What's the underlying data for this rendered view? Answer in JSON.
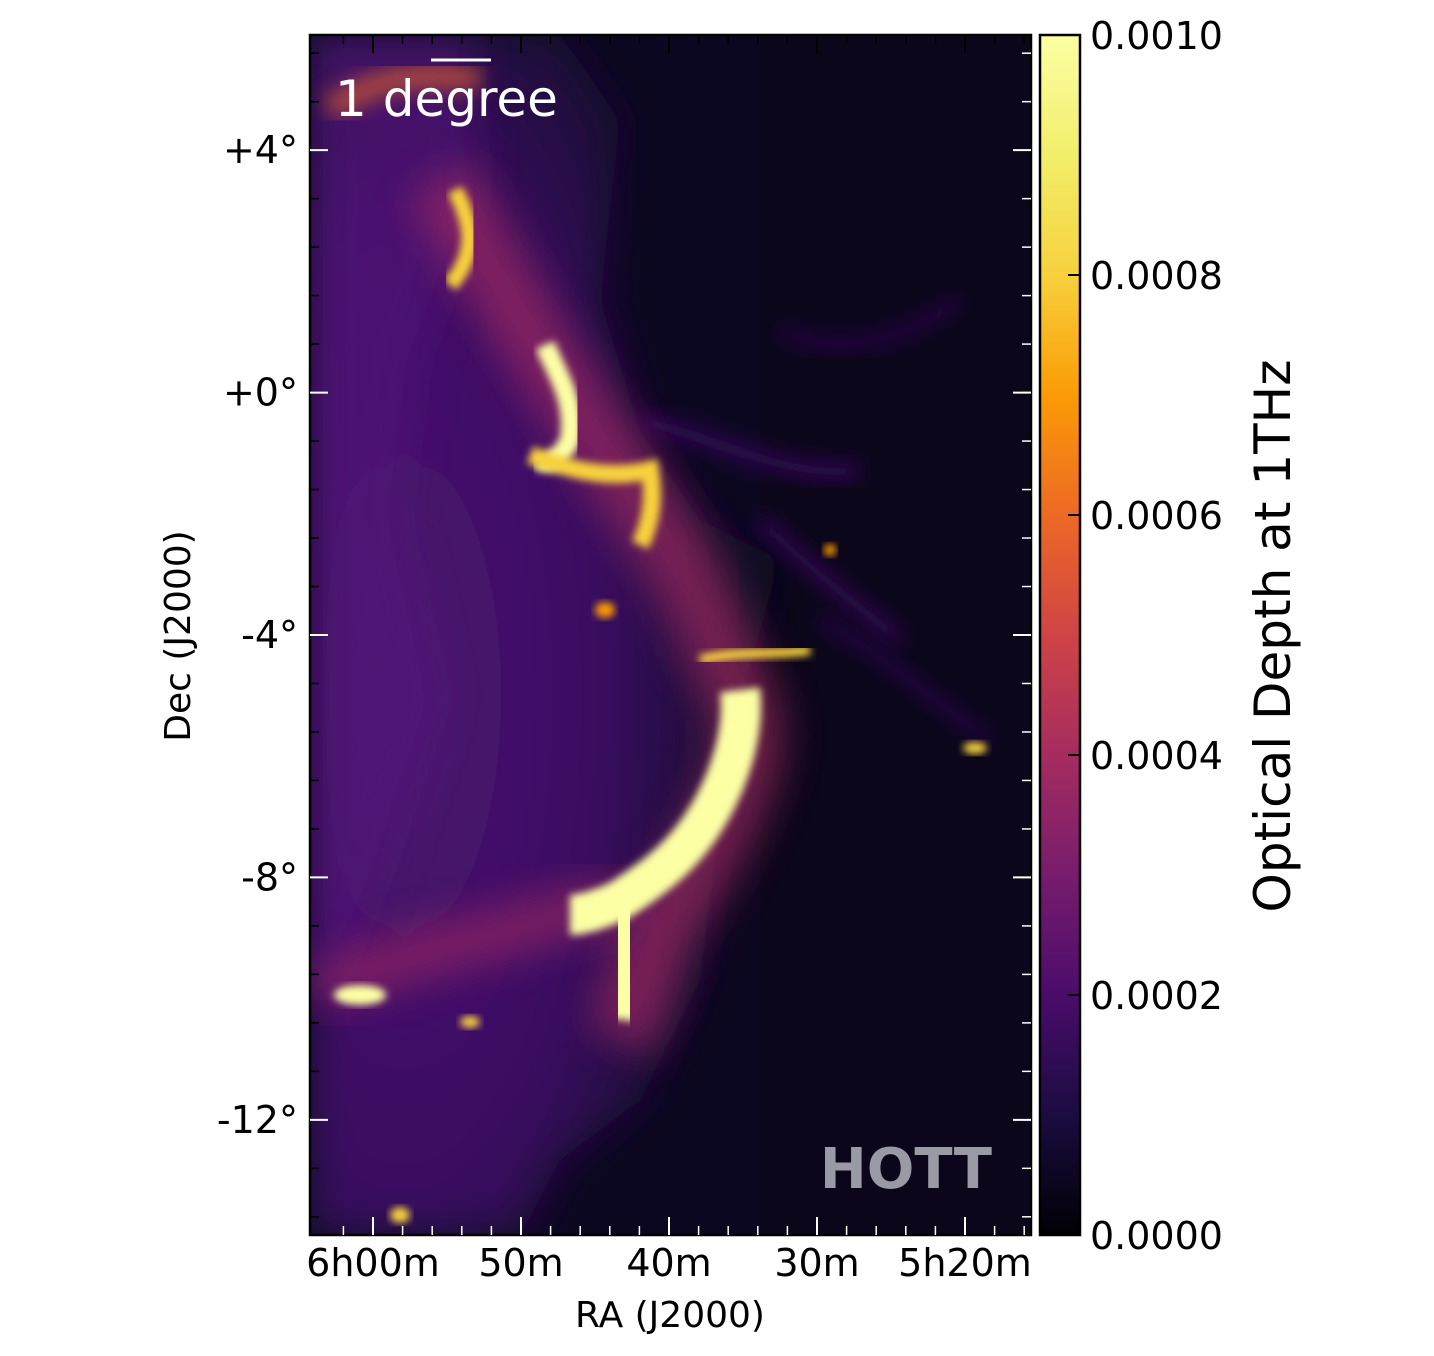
{
  "chart_data": {
    "type": "heatmap",
    "title": "",
    "xlabel": "RA (J2000)",
    "ylabel": "Dec (J2000)",
    "x_tick_labels": [
      "6h00m",
      "50m",
      "40m",
      "30m",
      "5h20m"
    ],
    "y_ticks": [
      4,
      0,
      -4,
      -8,
      -12
    ],
    "y_tick_labels": [
      "+4°",
      "+0°",
      "-4°",
      "-8°",
      "-12°"
    ],
    "ylim": [
      -13.9,
      5.9
    ],
    "colorbar": {
      "label": "Optical Depth at 1THz",
      "ticks": [
        0.0,
        0.0002,
        0.0004,
        0.0006,
        0.0008,
        0.001
      ],
      "tick_labels": [
        "0.0000",
        "0.0002",
        "0.0004",
        "0.0006",
        "0.0008",
        "0.0010"
      ],
      "range": [
        0.0,
        0.001
      ],
      "colormap": "inferno"
    },
    "annotations": {
      "scale_bar_label": "1 degree",
      "watermark": "HOTT"
    }
  }
}
